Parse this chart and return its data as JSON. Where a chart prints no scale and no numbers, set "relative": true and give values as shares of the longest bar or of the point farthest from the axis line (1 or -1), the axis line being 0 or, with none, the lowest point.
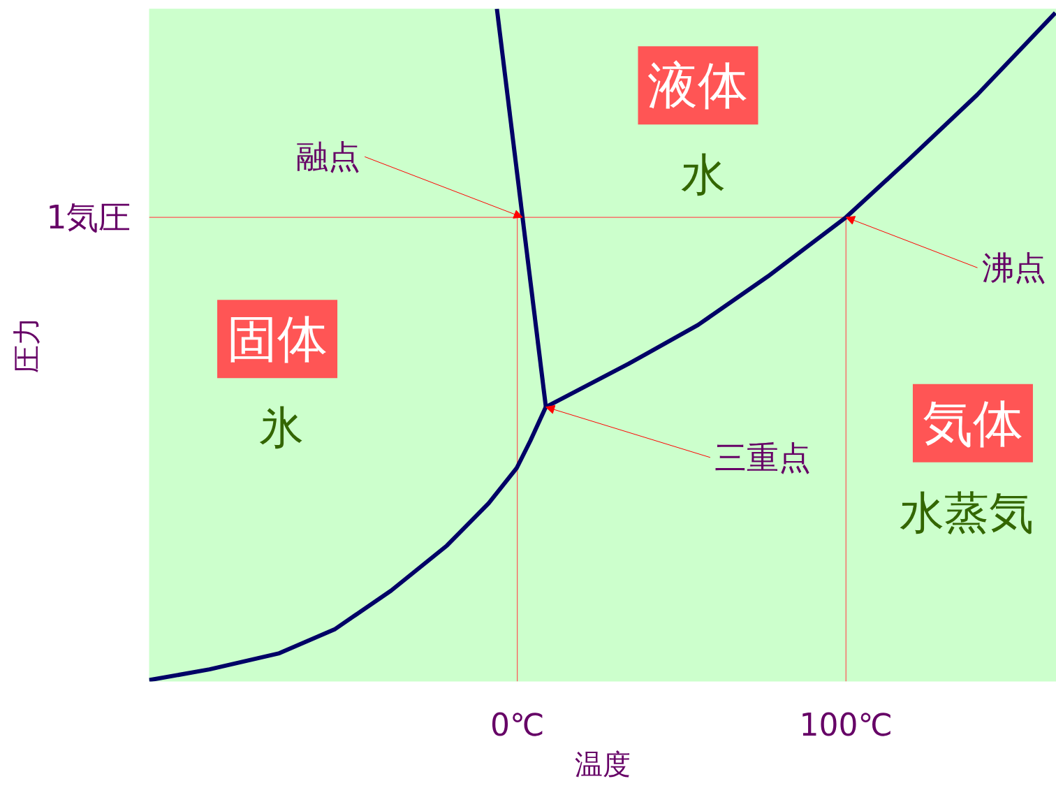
{
  "chart_data": {
    "type": "line",
    "relative": true,
    "xlabel": "温度",
    "ylabel": "圧力",
    "xlim": [
      -112,
      164
    ],
    "xticks": [
      {
        "value": 0,
        "label": "0℃"
      },
      {
        "value": 100,
        "label": "100℃"
      }
    ],
    "grid": false,
    "marker": "none",
    "line_style": "solid",
    "series": [
      {
        "color": "#000066",
        "x": [
          -112,
          -93.6,
          -72.4,
          -55.4,
          -38.4,
          -21.4,
          -8.7,
          -0.2,
          4.0,
          8.7
        ],
        "values": [
          0.002,
          0.018,
          0.042,
          0.078,
          0.135,
          0.202,
          0.265,
          0.317,
          0.358,
          0.408
        ]
      },
      {
        "color": "#000066",
        "x": [
          8.7,
          33.8,
          55.0,
          76.2,
          100,
          118.7,
          139.9,
          163.7
        ],
        "values": [
          0.408,
          0.472,
          0.53,
          0.602,
          0.69,
          0.774,
          0.872,
          0.994
        ]
      },
      {
        "color": "#000066",
        "x": [
          8.7,
          -6.2
        ],
        "values": [
          0.408,
          1.0
        ]
      }
    ],
    "ref_lines": [
      {
        "axis": "y",
        "value": 0.69,
        "label": "1気圧",
        "color": "#ff5555"
      },
      {
        "axis": "x",
        "value": 0,
        "color": "#ff5555"
      },
      {
        "axis": "x",
        "value": 100,
        "color": "#ff5555"
      }
    ],
    "annotations": [
      "液体",
      "水",
      "固体",
      "氷",
      "気体",
      "水蒸気",
      {
        "text": "融点",
        "x": 1.6,
        "y": 0.69
      },
      {
        "text": "沸点",
        "x": 100,
        "y": 0.69
      },
      {
        "text": "三重点",
        "x": 8.7,
        "y": 0.408
      }
    ]
  }
}
